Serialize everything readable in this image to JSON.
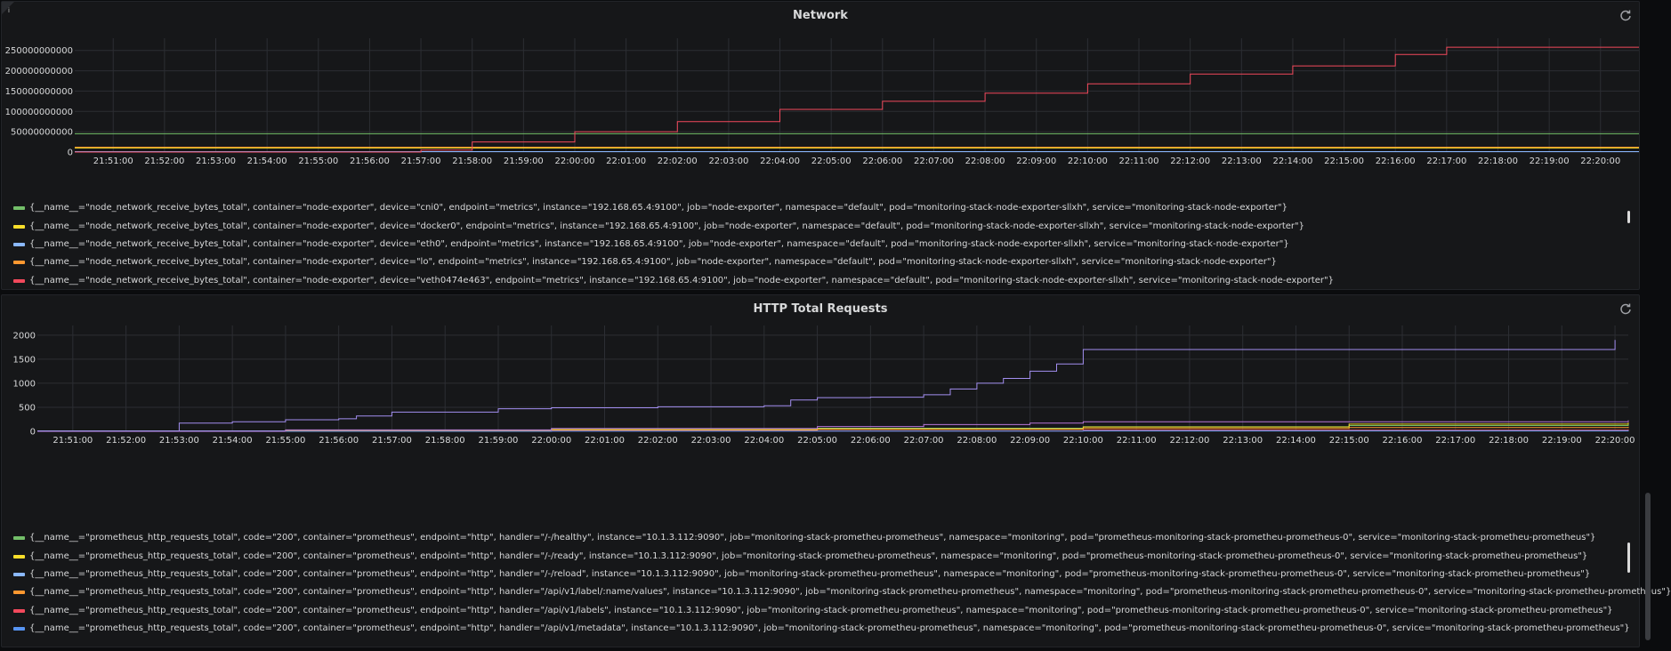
{
  "panels": [
    {
      "title": "Network",
      "legend": [
        {
          "color": "#73bf69",
          "label": "{__name__=\"node_network_receive_bytes_total\", container=\"node-exporter\", device=\"cni0\", endpoint=\"metrics\", instance=\"192.168.65.4:9100\", job=\"node-exporter\", namespace=\"default\", pod=\"monitoring-stack-node-exporter-sllxh\", service=\"monitoring-stack-node-exporter\"}"
        },
        {
          "color": "#fade2a",
          "label": "{__name__=\"node_network_receive_bytes_total\", container=\"node-exporter\", device=\"docker0\", endpoint=\"metrics\", instance=\"192.168.65.4:9100\", job=\"node-exporter\", namespace=\"default\", pod=\"monitoring-stack-node-exporter-sllxh\", service=\"monitoring-stack-node-exporter\"}"
        },
        {
          "color": "#8ab8ff",
          "label": "{__name__=\"node_network_receive_bytes_total\", container=\"node-exporter\", device=\"eth0\", endpoint=\"metrics\", instance=\"192.168.65.4:9100\", job=\"node-exporter\", namespace=\"default\", pod=\"monitoring-stack-node-exporter-sllxh\", service=\"monitoring-stack-node-exporter\"}"
        },
        {
          "color": "#ff9830",
          "label": "{__name__=\"node_network_receive_bytes_total\", container=\"node-exporter\", device=\"lo\", endpoint=\"metrics\", instance=\"192.168.65.4:9100\", job=\"node-exporter\", namespace=\"default\", pod=\"monitoring-stack-node-exporter-sllxh\", service=\"monitoring-stack-node-exporter\"}"
        },
        {
          "color": "#f2495c",
          "label": "{__name__=\"node_network_receive_bytes_total\", container=\"node-exporter\", device=\"veth0474e463\", endpoint=\"metrics\", instance=\"192.168.65.4:9100\", job=\"node-exporter\", namespace=\"default\", pod=\"monitoring-stack-node-exporter-sllxh\", service=\"monitoring-stack-node-exporter\"}"
        }
      ]
    },
    {
      "title": "HTTP Total Requests",
      "legend": [
        {
          "color": "#73bf69",
          "label": "{__name__=\"prometheus_http_requests_total\", code=\"200\", container=\"prometheus\", endpoint=\"http\", handler=\"/-/healthy\", instance=\"10.1.3.112:9090\", job=\"monitoring-stack-prometheu-prometheus\", namespace=\"monitoring\", pod=\"prometheus-monitoring-stack-prometheu-prometheus-0\", service=\"monitoring-stack-prometheu-prometheus\"}"
        },
        {
          "color": "#fade2a",
          "label": "{__name__=\"prometheus_http_requests_total\", code=\"200\", container=\"prometheus\", endpoint=\"http\", handler=\"/-/ready\", instance=\"10.1.3.112:9090\", job=\"monitoring-stack-prometheu-prometheus\", namespace=\"monitoring\", pod=\"prometheus-monitoring-stack-prometheu-prometheus-0\", service=\"monitoring-stack-prometheu-prometheus\"}"
        },
        {
          "color": "#8ab8ff",
          "label": "{__name__=\"prometheus_http_requests_total\", code=\"200\", container=\"prometheus\", endpoint=\"http\", handler=\"/-/reload\", instance=\"10.1.3.112:9090\", job=\"monitoring-stack-prometheu-prometheus\", namespace=\"monitoring\", pod=\"prometheus-monitoring-stack-prometheu-prometheus-0\", service=\"monitoring-stack-prometheu-prometheus\"}"
        },
        {
          "color": "#ff9830",
          "label": "{__name__=\"prometheus_http_requests_total\", code=\"200\", container=\"prometheus\", endpoint=\"http\", handler=\"/api/v1/label/:name/values\", instance=\"10.1.3.112:9090\", job=\"monitoring-stack-prometheu-prometheus\", namespace=\"monitoring\", pod=\"prometheus-monitoring-stack-prometheu-prometheus-0\", service=\"monitoring-stack-prometheu-prometheus\"}"
        },
        {
          "color": "#f2495c",
          "label": "{__name__=\"prometheus_http_requests_total\", code=\"200\", container=\"prometheus\", endpoint=\"http\", handler=\"/api/v1/labels\", instance=\"10.1.3.112:9090\", job=\"monitoring-stack-prometheu-prometheus\", namespace=\"monitoring\", pod=\"prometheus-monitoring-stack-prometheu-prometheus-0\", service=\"monitoring-stack-prometheu-prometheus\"}"
        },
        {
          "color": "#5794f2",
          "label": "{__name__=\"prometheus_http_requests_total\", code=\"200\", container=\"prometheus\", endpoint=\"http\", handler=\"/api/v1/metadata\", instance=\"10.1.3.112:9090\", job=\"monitoring-stack-prometheu-prometheus\", namespace=\"monitoring\", pod=\"prometheus-monitoring-stack-prometheu-prometheus-0\", service=\"monitoring-stack-prometheu-prometheus\"}"
        }
      ]
    }
  ],
  "chart_data": [
    {
      "type": "line",
      "title": "Network",
      "xlabel": "",
      "ylabel": "",
      "ylim": [
        0,
        280000000000
      ],
      "yticks": [
        0,
        50000000000,
        100000000000,
        150000000000,
        200000000000,
        250000000000
      ],
      "ytick_labels": [
        "0",
        "50000000000",
        "100000000000",
        "150000000000",
        "200000000000",
        "250000000000"
      ],
      "xlim": [
        "21:50:15",
        "22:20:45"
      ],
      "xticks": [
        "21:51:00",
        "21:52:00",
        "21:53:00",
        "21:54:00",
        "21:55:00",
        "21:56:00",
        "21:57:00",
        "21:58:00",
        "21:59:00",
        "22:00:00",
        "22:01:00",
        "22:02:00",
        "22:03:00",
        "22:04:00",
        "22:05:00",
        "22:06:00",
        "22:07:00",
        "22:08:00",
        "22:09:00",
        "22:10:00",
        "22:11:00",
        "22:12:00",
        "22:13:00",
        "22:14:00",
        "22:15:00",
        "22:16:00",
        "22:17:00",
        "22:18:00",
        "22:19:00",
        "22:20:00"
      ],
      "grid": true,
      "series": [
        {
          "color": "#73bf69",
          "x": [
            "21:50:15",
            "22:20:45"
          ],
          "values": [
            45000000000,
            45000000000
          ]
        },
        {
          "color": "#fade2a",
          "x": [
            "21:50:15",
            "22:20:45"
          ],
          "values": [
            10000000000,
            10000000000
          ]
        },
        {
          "color": "#8ab8ff",
          "x": [
            "21:50:15",
            "22:20:45"
          ],
          "values": [
            1000000000,
            1000000000
          ]
        },
        {
          "color": "#ff9830",
          "x": [
            "21:50:15",
            "22:20:45"
          ],
          "values": [
            12000000000,
            12000000000
          ]
        },
        {
          "color": "#f2495c",
          "x": [
            "21:50:15",
            "21:56:30",
            "21:57:00",
            "21:58:00",
            "22:00:00",
            "22:02:00",
            "22:04:00",
            "22:06:00",
            "22:08:00",
            "22:10:00",
            "22:12:00",
            "22:14:00",
            "22:16:00",
            "22:17:00",
            "22:20:45"
          ],
          "values": [
            0,
            0,
            5000000000,
            25000000000,
            50000000000,
            75000000000,
            105000000000,
            125000000000,
            145000000000,
            168000000000,
            192000000000,
            212000000000,
            240000000000,
            258000000000,
            258000000000
          ]
        }
      ]
    },
    {
      "type": "line",
      "title": "HTTP Total Requests",
      "xlabel": "",
      "ylabel": "",
      "ylim": [
        0,
        2200
      ],
      "yticks": [
        0,
        500,
        1000,
        1500,
        2000
      ],
      "ytick_labels": [
        "0",
        "500",
        "1000",
        "1500",
        "2000"
      ],
      "xlim": [
        "21:50:20",
        "22:20:15"
      ],
      "xticks": [
        "21:51:00",
        "21:52:00",
        "21:53:00",
        "21:54:00",
        "21:55:00",
        "21:56:00",
        "21:57:00",
        "21:58:00",
        "21:59:00",
        "22:00:00",
        "22:01:00",
        "22:02:00",
        "22:03:00",
        "22:04:00",
        "22:05:00",
        "22:06:00",
        "22:07:00",
        "22:08:00",
        "22:09:00",
        "22:10:00",
        "22:11:00",
        "22:12:00",
        "22:13:00",
        "22:14:00",
        "22:15:00",
        "22:16:00",
        "22:17:00",
        "22:18:00",
        "22:19:00",
        "22:20:00"
      ],
      "grid": true,
      "series": [
        {
          "color": "#73bf69",
          "x": [
            "21:50:20",
            "21:55:00",
            "22:00:00",
            "22:05:00",
            "22:10:00",
            "22:15:00",
            "22:20:15"
          ],
          "values": [
            0,
            20,
            40,
            65,
            95,
            120,
            150
          ]
        },
        {
          "color": "#fade2a",
          "x": [
            "21:50:20",
            "21:55:00",
            "22:00:00",
            "22:05:00",
            "22:10:00",
            "22:15:00",
            "22:20:15"
          ],
          "values": [
            0,
            15,
            35,
            50,
            90,
            150,
            180
          ]
        },
        {
          "color": "#8ab8ff",
          "x": [
            "21:50:20",
            "22:20:15"
          ],
          "values": [
            10,
            12
          ]
        },
        {
          "color": "#ff9830",
          "x": [
            "21:50:20",
            "21:55:00",
            "22:00:00",
            "22:05:00",
            "22:10:00",
            "22:15:00",
            "22:20:15"
          ],
          "values": [
            0,
            10,
            25,
            40,
            60,
            80,
            95
          ]
        },
        {
          "color": "#f2495c",
          "x": [
            "21:50:20",
            "22:00:00",
            "22:10:00",
            "22:20:15"
          ],
          "values": [
            0,
            10,
            25,
            40
          ]
        },
        {
          "color": "#5794f2",
          "x": [
            "21:50:20",
            "22:00:00",
            "22:10:00",
            "22:20:15"
          ],
          "values": [
            0,
            5,
            12,
            20
          ]
        },
        {
          "color": "#a28ef0",
          "x": [
            "21:50:20",
            "21:53:00",
            "21:53:00",
            "21:54:00",
            "21:55:00",
            "21:56:00",
            "21:56:20",
            "21:57:00",
            "21:59:00",
            "22:00:00",
            "22:02:00",
            "22:04:00",
            "22:04:30",
            "22:05:00",
            "22:06:00",
            "22:07:00",
            "22:07:30",
            "22:08:00",
            "22:08:30",
            "22:09:00",
            "22:09:30",
            "22:10:00",
            "22:19:30",
            "22:20:00"
          ],
          "values": [
            0,
            0,
            170,
            200,
            240,
            260,
            320,
            400,
            470,
            490,
            510,
            530,
            650,
            700,
            710,
            760,
            880,
            1000,
            1100,
            1250,
            1400,
            1700,
            1700,
            1900
          ]
        },
        {
          "color": "#b877d9",
          "x": [
            "21:50:20",
            "21:55:00",
            "22:00:00",
            "22:05:00",
            "22:07:00",
            "22:09:00",
            "22:10:00",
            "22:20:15"
          ],
          "values": [
            0,
            30,
            60,
            100,
            140,
            170,
            200,
            230
          ]
        }
      ]
    }
  ]
}
